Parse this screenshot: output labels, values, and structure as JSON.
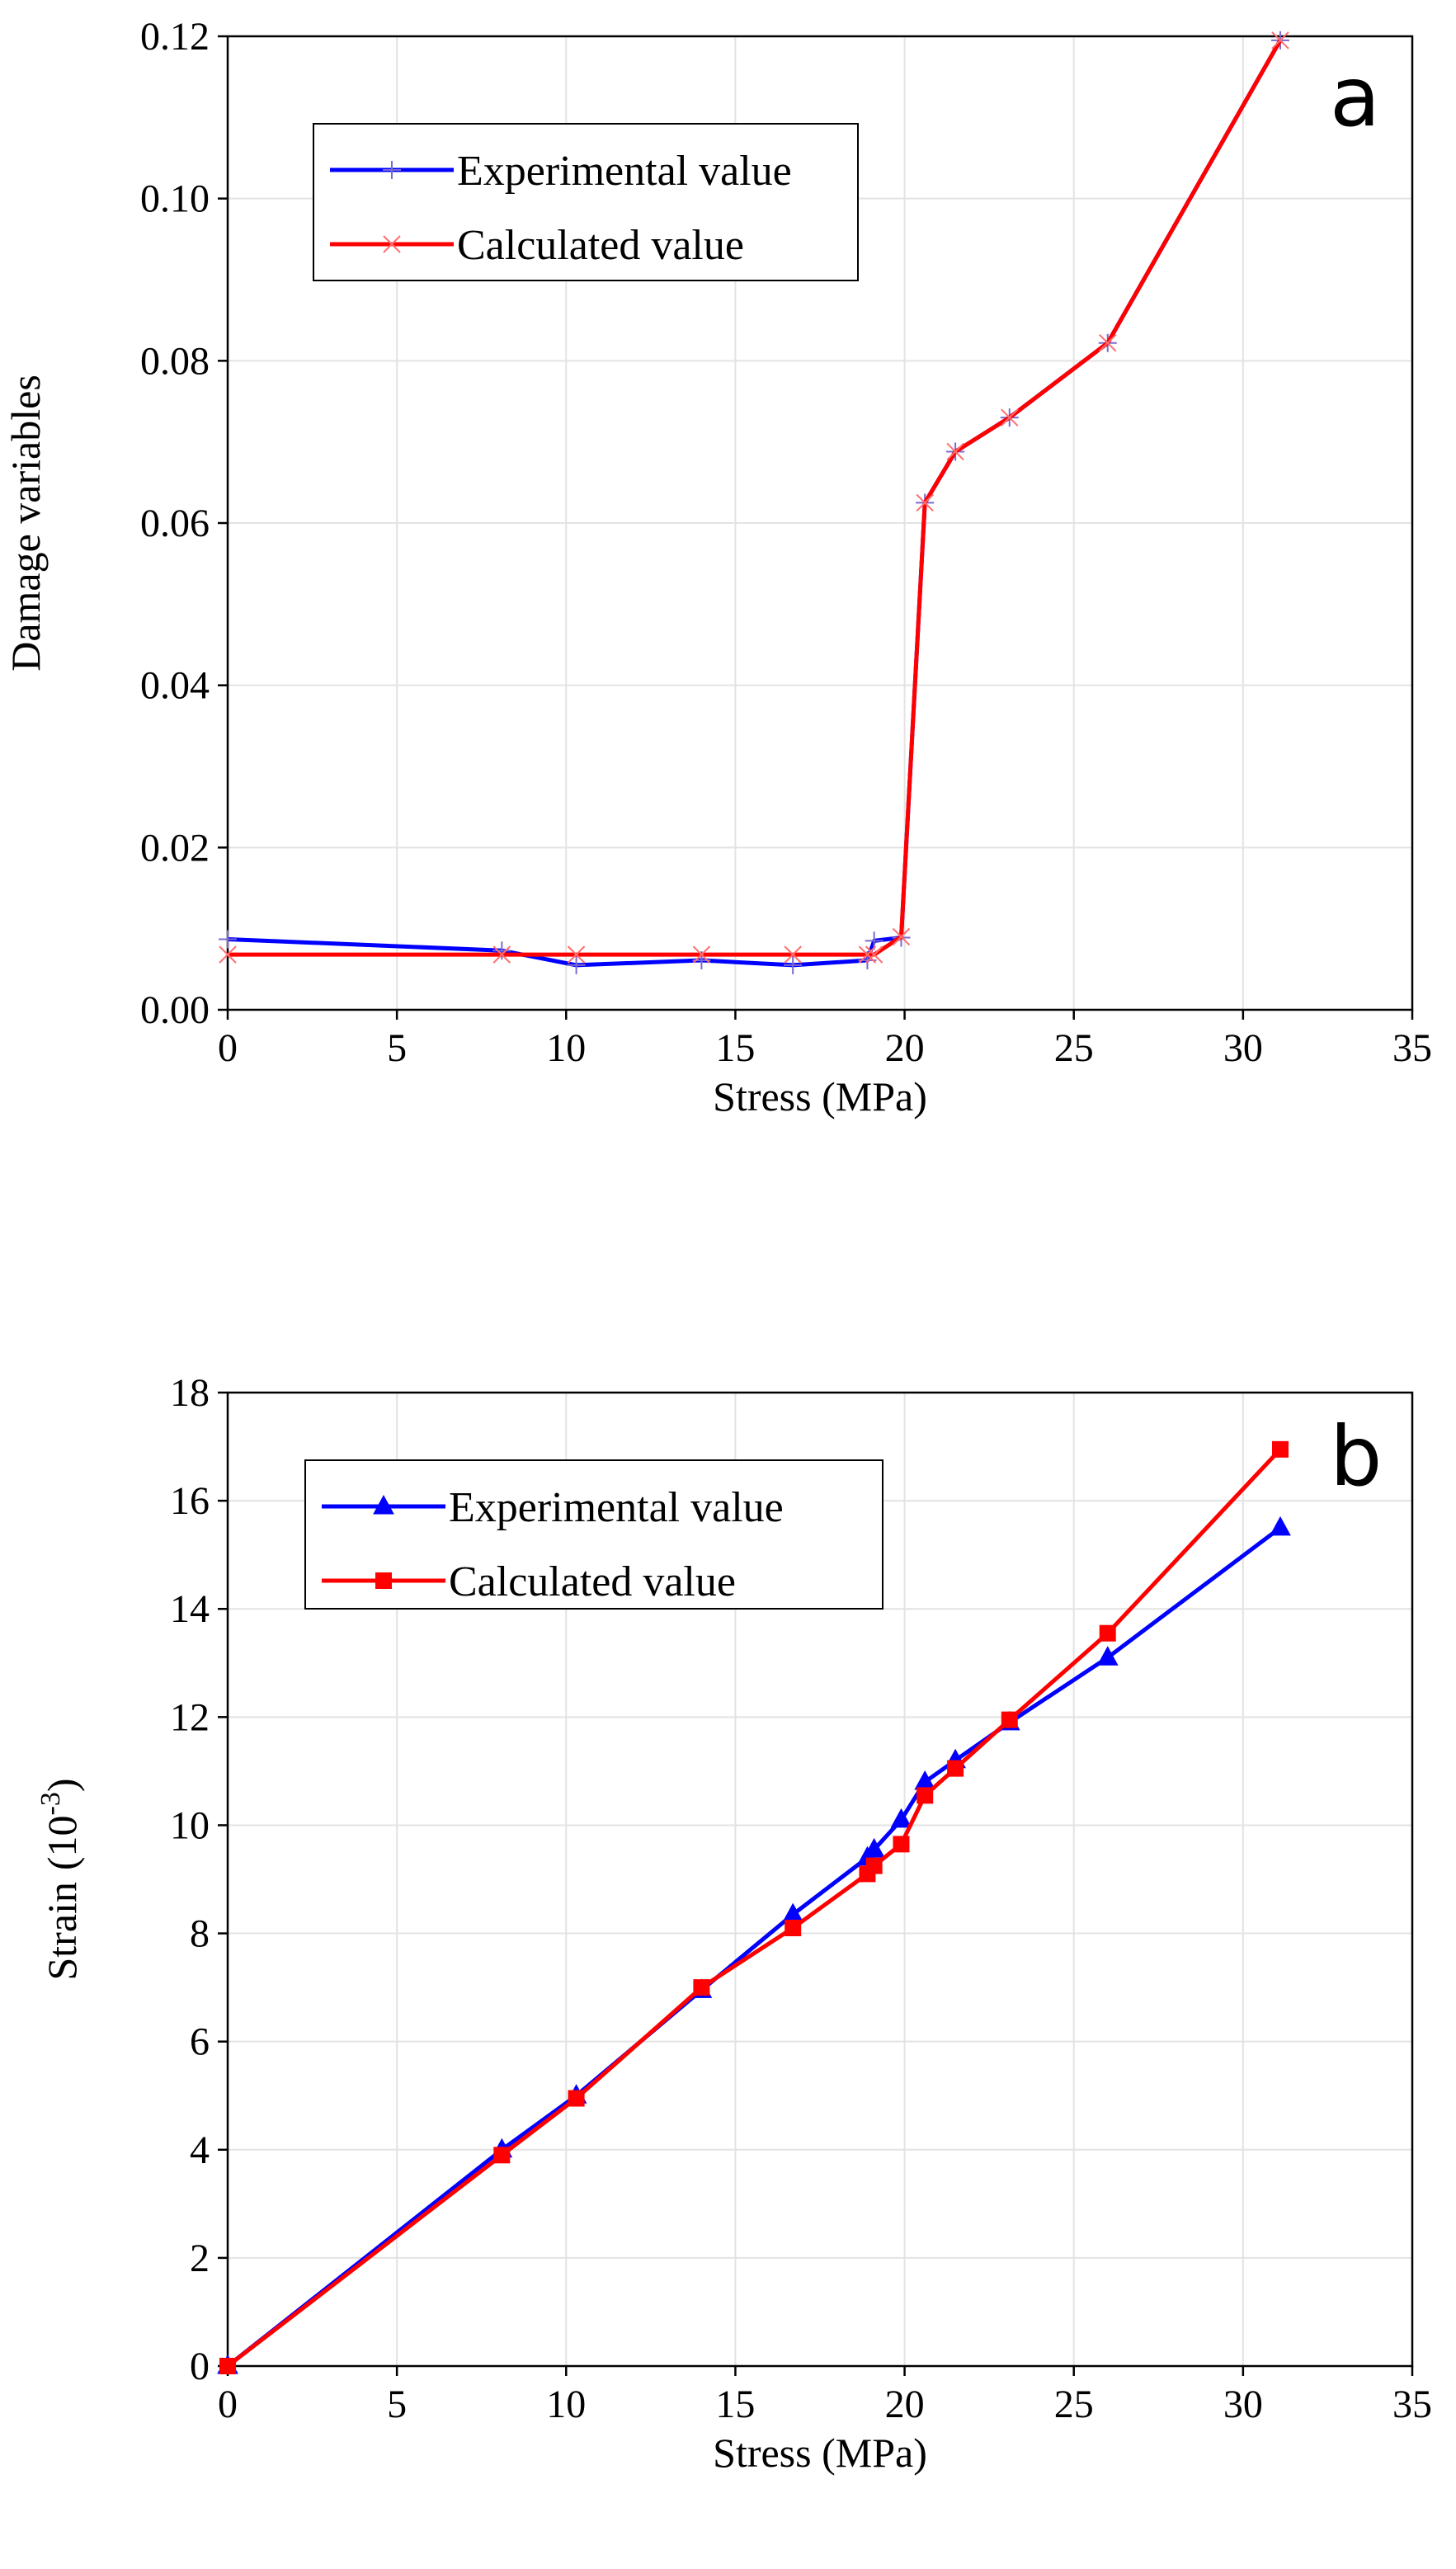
{
  "chart_data": [
    {
      "type": "line",
      "panel_label": "a",
      "xlabel": "Stress (MPa)",
      "ylabel": "Damage variables",
      "xlim": [
        0,
        35
      ],
      "ylim": [
        0,
        0.12
      ],
      "xticks": [
        0,
        5,
        10,
        15,
        20,
        25,
        30,
        35
      ],
      "xtick_labels": [
        "0",
        "5",
        "10",
        "15",
        "20",
        "25",
        "30",
        "35"
      ],
      "yticks": [
        0,
        0.02,
        0.04,
        0.06,
        0.08,
        0.1,
        0.12
      ],
      "ytick_labels": [
        "0.00",
        "0.02",
        "0.04",
        "0.06",
        "0.08",
        "0.10",
        "0.12"
      ],
      "grid": true,
      "legend_position": "top-left",
      "series": [
        {
          "name": "Experimental value",
          "color": "#0000ff",
          "marker": "plus",
          "x": [
            0,
            8.1,
            10.3,
            14.0,
            16.7,
            18.9,
            19.1,
            19.9,
            20.6,
            21.5,
            23.1,
            26.0,
            31.1
          ],
          "y": [
            0.0087,
            0.0073,
            0.0055,
            0.0061,
            0.0055,
            0.0061,
            0.0085,
            0.0089,
            0.0625,
            0.0688,
            0.073,
            0.0822,
            0.1195
          ]
        },
        {
          "name": "Calculated value",
          "color": "#ff0000",
          "marker": "x",
          "x": [
            0,
            8.1,
            10.3,
            14.0,
            16.7,
            18.9,
            19.1,
            19.9,
            20.6,
            21.5,
            23.1,
            26.0,
            31.1
          ],
          "y": [
            0.0068,
            0.0068,
            0.0068,
            0.0068,
            0.0068,
            0.0068,
            0.0068,
            0.009,
            0.0625,
            0.0688,
            0.073,
            0.0822,
            0.1195
          ]
        }
      ]
    },
    {
      "type": "line",
      "panel_label": "b",
      "xlabel": "Stress (MPa)",
      "ylabel": "Strain",
      "ylabel_unit_base": "(10",
      "ylabel_unit_exp": "-3",
      "ylabel_unit_close": ")",
      "xlim": [
        0,
        35
      ],
      "ylim": [
        0,
        18
      ],
      "xticks": [
        0,
        5,
        10,
        15,
        20,
        25,
        30,
        35
      ],
      "xtick_labels": [
        "0",
        "5",
        "10",
        "15",
        "20",
        "25",
        "30",
        "35"
      ],
      "yticks": [
        0,
        2,
        4,
        6,
        8,
        10,
        12,
        14,
        16,
        18
      ],
      "ytick_labels": [
        "0",
        "2",
        "4",
        "6",
        "8",
        "10",
        "12",
        "14",
        "16",
        "18"
      ],
      "grid": true,
      "legend_position": "top-left",
      "series": [
        {
          "name": "Experimental value",
          "color": "#0000ff",
          "marker": "triangle",
          "x": [
            0,
            8.1,
            10.3,
            14.0,
            16.7,
            18.9,
            19.1,
            19.9,
            20.6,
            21.5,
            23.1,
            26.0,
            31.1
          ],
          "y": [
            0,
            4.0,
            5.0,
            6.95,
            8.35,
            9.4,
            9.55,
            10.1,
            10.8,
            11.2,
            11.9,
            13.1,
            15.5
          ]
        },
        {
          "name": "Calculated value",
          "color": "#ff0000",
          "marker": "square",
          "x": [
            0,
            8.1,
            10.3,
            14.0,
            16.7,
            18.9,
            19.1,
            19.9,
            20.6,
            21.5,
            23.1,
            26.0,
            31.1
          ],
          "y": [
            0,
            3.9,
            4.95,
            7.0,
            8.1,
            9.1,
            9.25,
            9.65,
            10.55,
            11.05,
            11.95,
            13.55,
            16.95
          ]
        }
      ]
    }
  ]
}
